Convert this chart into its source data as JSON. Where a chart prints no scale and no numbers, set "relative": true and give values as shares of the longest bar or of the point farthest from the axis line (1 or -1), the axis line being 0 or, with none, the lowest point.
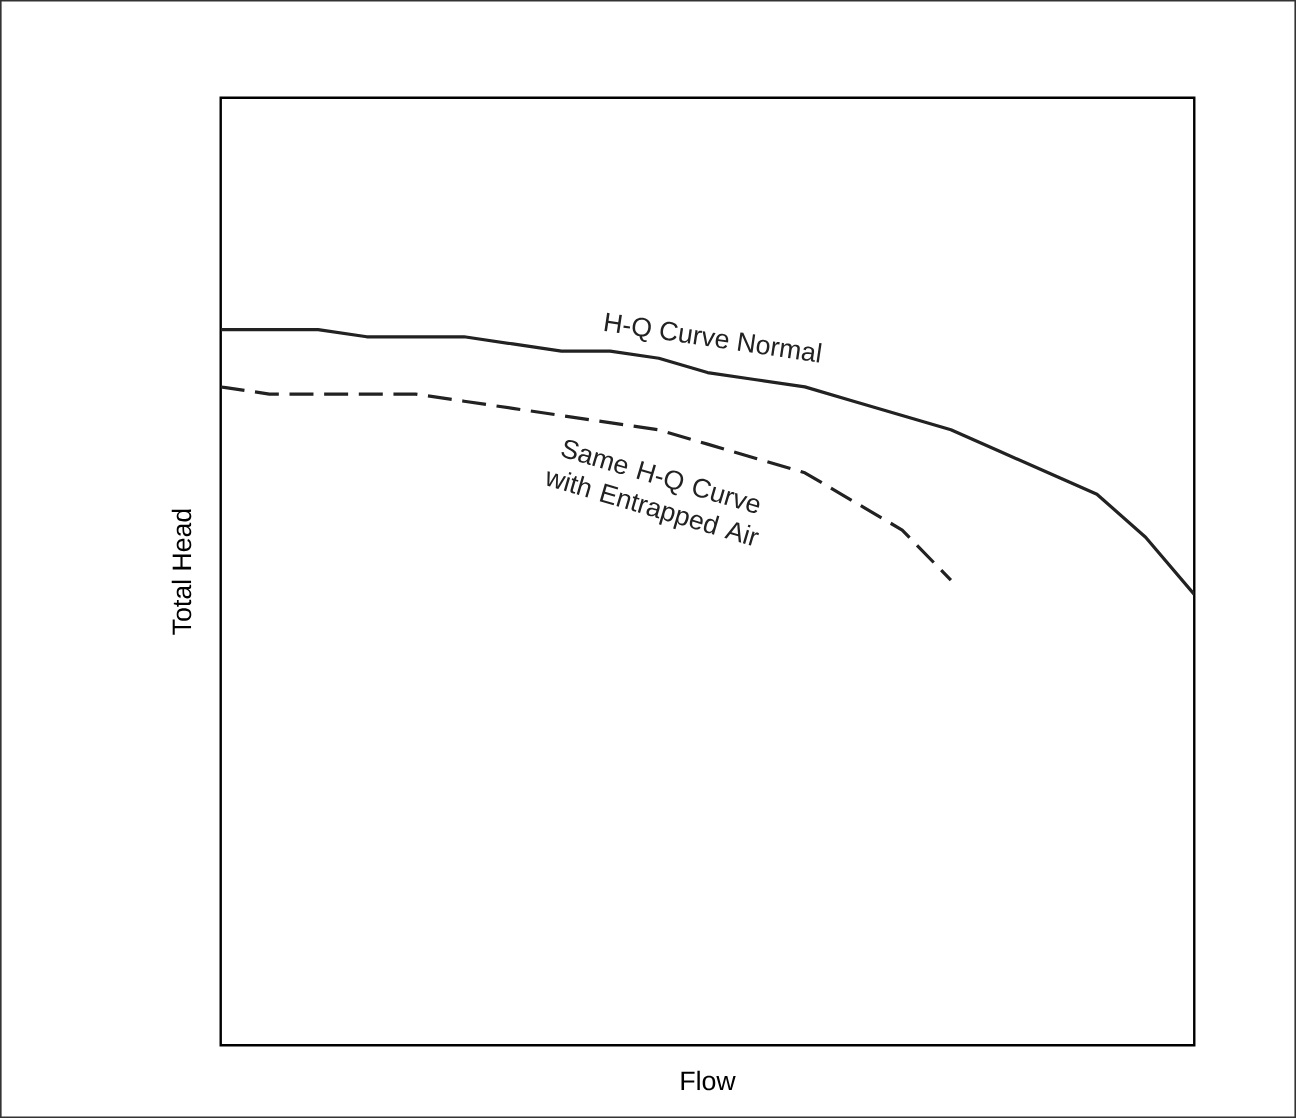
{
  "chart_data": {
    "type": "line",
    "relative": true,
    "xlabel": "Flow",
    "ylabel": "Total Head",
    "marker": "none",
    "categories": [
      null,
      null,
      null,
      null,
      null,
      null,
      null,
      null,
      null,
      null,
      null,
      null,
      null,
      null,
      null,
      null,
      null,
      null,
      null,
      null,
      null
    ],
    "series": [
      {
        "name": "H-Q Curve Normal",
        "color": "#222222",
        "line_style": "solid",
        "values": [
          1.0,
          1.0,
          1.0,
          0.99,
          0.99,
          0.99,
          0.98,
          0.97,
          0.97,
          0.96,
          0.94,
          0.93,
          0.92,
          0.9,
          0.88,
          0.86,
          0.83,
          0.8,
          0.77,
          0.71,
          0.63
        ]
      },
      {
        "name": "Same H-Q Curve with Entrapped Air",
        "color": "#222222",
        "line_style": "dashed",
        "values": [
          0.92,
          0.91,
          0.91,
          0.91,
          0.91,
          0.9,
          0.89,
          0.88,
          0.87,
          0.86,
          0.84,
          0.82,
          0.8,
          0.76,
          0.72,
          0.65,
          null,
          null,
          null,
          null,
          null
        ]
      }
    ]
  }
}
